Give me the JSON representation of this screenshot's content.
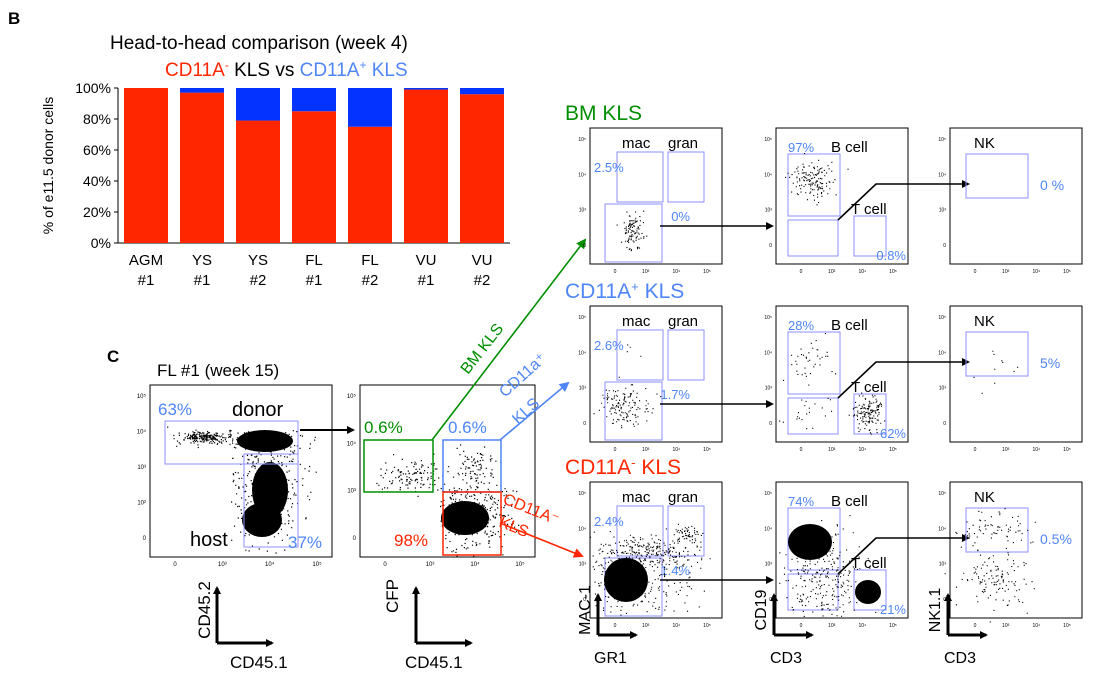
{
  "panel_b": {
    "letter": "B",
    "title": "Head-to-head comparison (week 4)",
    "subtitle_left": "CD11A",
    "subtitle_left_sup": "-",
    "subtitle_mid": " KLS vs ",
    "subtitle_right": "CD11A",
    "subtitle_right_sup": "+",
    "subtitle_end": " KLS",
    "colors": {
      "neg": "#ff2600",
      "pos": "#0433ff",
      "green": "#008f00",
      "blue_text": "#4f86f7",
      "gate": "#8f8fff"
    }
  },
  "chart_data": {
    "type": "bar",
    "stacked": true,
    "ylabel": "% of e11.5 donor cells",
    "yticks": [
      "0%",
      "20%",
      "40%",
      "60%",
      "80%",
      "100%"
    ],
    "ylim": [
      0,
      100
    ],
    "categories": [
      {
        "line1": "AGM",
        "line2": "#1"
      },
      {
        "line1": "YS",
        "line2": "#1"
      },
      {
        "line1": "YS",
        "line2": "#2"
      },
      {
        "line1": "FL",
        "line2": "#1"
      },
      {
        "line1": "FL",
        "line2": "#2"
      },
      {
        "line1": "VU",
        "line2": "#1"
      },
      {
        "line1": "VU",
        "line2": "#2"
      }
    ],
    "series": [
      {
        "name": "CD11A- KLS",
        "color": "#ff2600",
        "values": [
          100,
          97,
          79,
          85,
          75,
          99,
          96
        ]
      },
      {
        "name": "CD11A+ KLS",
        "color": "#0433ff",
        "values": [
          0,
          3,
          21,
          15,
          25,
          1,
          4
        ]
      }
    ]
  },
  "panel_c": {
    "letter": "C",
    "title": "FL #1 (week 15)",
    "plot1": {
      "gate_top_pct": "63%",
      "gate_top_label": "donor",
      "host_label": "host",
      "gate_bottom_pct": "37%",
      "y_axis": "CD45.2",
      "x_axis": "CD45.1"
    },
    "plot2": {
      "green_pct": "0.6%",
      "blue_pct": "0.6%",
      "red_pct": "98%",
      "y_axis": "CFP",
      "x_axis": "CD45.1"
    },
    "arrows": {
      "green": "BM KLS",
      "blue_line1": "CD11a⁺",
      "blue_line2": "KLS",
      "red_line1": "CD11A⁻",
      "red_line2": "KLS"
    }
  },
  "rows": [
    {
      "title": "BM KLS",
      "title_sup": "",
      "title_color": "#008f00",
      "mac": "mac",
      "gran": "gran",
      "mac_pct": "2.5%",
      "gran_pct": "0%",
      "bcell": "B cell",
      "tcell": "T cell",
      "b_pct": "97%",
      "t_pct": "0.8%",
      "nk": "NK",
      "nk_pct": "0 %"
    },
    {
      "title": "CD11A",
      "title_sup": "+",
      "title_tail": " KLS",
      "title_color": "#4f86f7",
      "mac": "mac",
      "gran": "gran",
      "mac_pct": "2.6%",
      "gran_pct": "1.7%",
      "bcell": "B cell",
      "tcell": "T cell",
      "b_pct": "28%",
      "t_pct": "62%",
      "nk": "NK",
      "nk_pct": "5%"
    },
    {
      "title": "CD11A",
      "title_sup": "-",
      "title_tail": " KLS",
      "title_color": "#ff2600",
      "mac": "mac",
      "gran": "gran",
      "mac_pct": "2.4%",
      "gran_pct": "1.4%",
      "bcell": "B cell",
      "tcell": "T cell",
      "b_pct": "74%",
      "t_pct": "21%",
      "nk": "NK",
      "nk_pct": "0.5%"
    }
  ],
  "bottom_axes": {
    "col1_y": "MAC-1",
    "col1_x": "GR1",
    "col2_y": "CD19",
    "col2_x": "CD3",
    "col3_y": "NK1.1",
    "col3_x": "CD3"
  },
  "tick_labels": {
    "y": [
      "10⁵",
      "10⁴",
      "10³",
      "0"
    ],
    "x": [
      "0",
      "10³",
      "10⁴",
      "10⁵"
    ],
    "y_small": [
      "10⁵",
      "10⁴",
      "10³",
      "10²",
      "0"
    ]
  }
}
